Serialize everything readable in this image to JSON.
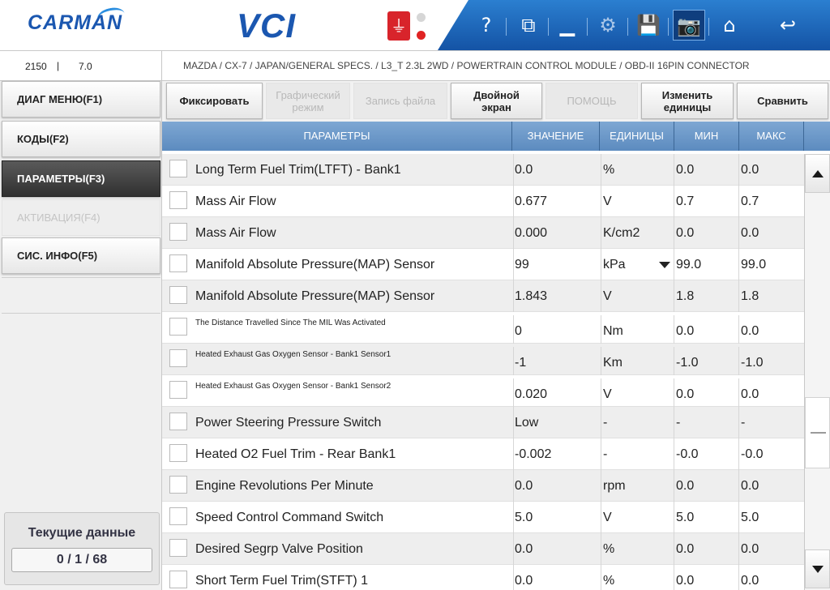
{
  "header": {
    "logo": "CARMAN",
    "product": "VCI",
    "usb_icon": "usb-icon",
    "toolbar": [
      {
        "name": "help-icon",
        "glyph": "?"
      },
      {
        "name": "window-icon",
        "glyph": "⧉"
      },
      {
        "name": "minimize-icon",
        "glyph": "▁"
      },
      {
        "name": "settings-icon",
        "glyph": "⚙"
      },
      {
        "name": "save-icon",
        "glyph": "💾"
      },
      {
        "name": "camera-icon",
        "glyph": "📷"
      },
      {
        "name": "home-icon",
        "glyph": "⌂"
      },
      {
        "name": "back-icon",
        "glyph": "↩"
      }
    ]
  },
  "info": {
    "code": "2150",
    "separator": "|",
    "version": "7.0",
    "path": "MAZDA / CX-7 / JAPAN/GENERAL SPECS. / L3_T 2.3L 2WD / POWERTRAIN CONTROL MODULE / OBD-II 16PIN CONNECTOR"
  },
  "menu": {
    "items": [
      {
        "label": "ДИАГ МЕНЮ(F1)",
        "state": "normal"
      },
      {
        "label": "КОДЫ(F2)",
        "state": "normal"
      },
      {
        "label": "ПАРАМЕТРЫ(F3)",
        "state": "active"
      },
      {
        "label": "АКТИВАЦИЯ(F4)",
        "state": "disabled"
      },
      {
        "label": "СИС. ИНФО(F5)",
        "state": "normal"
      }
    ],
    "status_title": "Текущие данные",
    "status_count": "0 / 1 / 68"
  },
  "actions": [
    {
      "label": "Фиксировать",
      "enabled": true
    },
    {
      "label": "Графический\nрежим",
      "enabled": false
    },
    {
      "label": "Запись файла",
      "enabled": false
    },
    {
      "label": "Двойной\nэкран",
      "enabled": true
    },
    {
      "label": "ПОМОЩЬ",
      "enabled": false
    },
    {
      "label": "Изменить\nединицы",
      "enabled": true
    },
    {
      "label": "Сравнить",
      "enabled": true
    }
  ],
  "table": {
    "headers": {
      "param": "ПАРАМЕТРЫ",
      "value": "ЗНАЧЕНИЕ",
      "unit": "ЕДИНИЦЫ",
      "min": "МИН",
      "max": "МАКС"
    },
    "rows": [
      {
        "name": "Long Term Fuel Trim(LTFT) - Bank1",
        "value": "0.0",
        "unit": "%",
        "min": "0.0",
        "max": "0.0"
      },
      {
        "name": "Mass Air Flow",
        "value": "0.677",
        "unit": "V",
        "min": "0.7",
        "max": "0.7"
      },
      {
        "name": "Mass Air Flow",
        "value": "0.000",
        "unit": "K/cm2",
        "min": "0.0",
        "max": "0.0"
      },
      {
        "name": "Manifold Absolute Pressure(MAP) Sensor",
        "value": "99",
        "unit": "kPa",
        "min": "99.0",
        "max": "99.0",
        "unit_dropdown": true
      },
      {
        "name": "Manifold Absolute Pressure(MAP) Sensor",
        "value": "1.843",
        "unit": "V",
        "min": "1.8",
        "max": "1.8"
      },
      {
        "name": "The Distance Travelled Since The MIL Was Activated",
        "value": "0",
        "unit": "Nm",
        "min": "0.0",
        "max": "0.0",
        "small": true
      },
      {
        "name": "Heated Exhaust Gas Oxygen Sensor - Bank1 Sensor1",
        "value": "-1",
        "unit": "Km",
        "min": "-1.0",
        "max": "-1.0",
        "small": true
      },
      {
        "name": "Heated Exhaust Gas Oxygen Sensor - Bank1 Sensor2",
        "value": "0.020",
        "unit": "V",
        "min": "0.0",
        "max": "0.0",
        "small": true
      },
      {
        "name": "Power Steering Pressure Switch",
        "value": "Low",
        "unit": "-",
        "min": "-",
        "max": "-"
      },
      {
        "name": "Heated O2 Fuel Trim - Rear Bank1",
        "value": "-0.002",
        "unit": "-",
        "min": "-0.0",
        "max": "-0.0"
      },
      {
        "name": "Engine Revolutions Per Minute",
        "value": "0.0",
        "unit": "rpm",
        "min": "0.0",
        "max": "0.0"
      },
      {
        "name": "Speed Control Command Switch",
        "value": "5.0",
        "unit": "V",
        "min": "5.0",
        "max": "5.0"
      },
      {
        "name": "Desired Segrp Valve Position",
        "value": "0.0",
        "unit": "%",
        "min": "0.0",
        "max": "0.0"
      },
      {
        "name": "Short Term Fuel Trim(STFT) 1",
        "value": "0.0",
        "unit": "%",
        "min": "0.0",
        "max": "0.0"
      }
    ]
  }
}
